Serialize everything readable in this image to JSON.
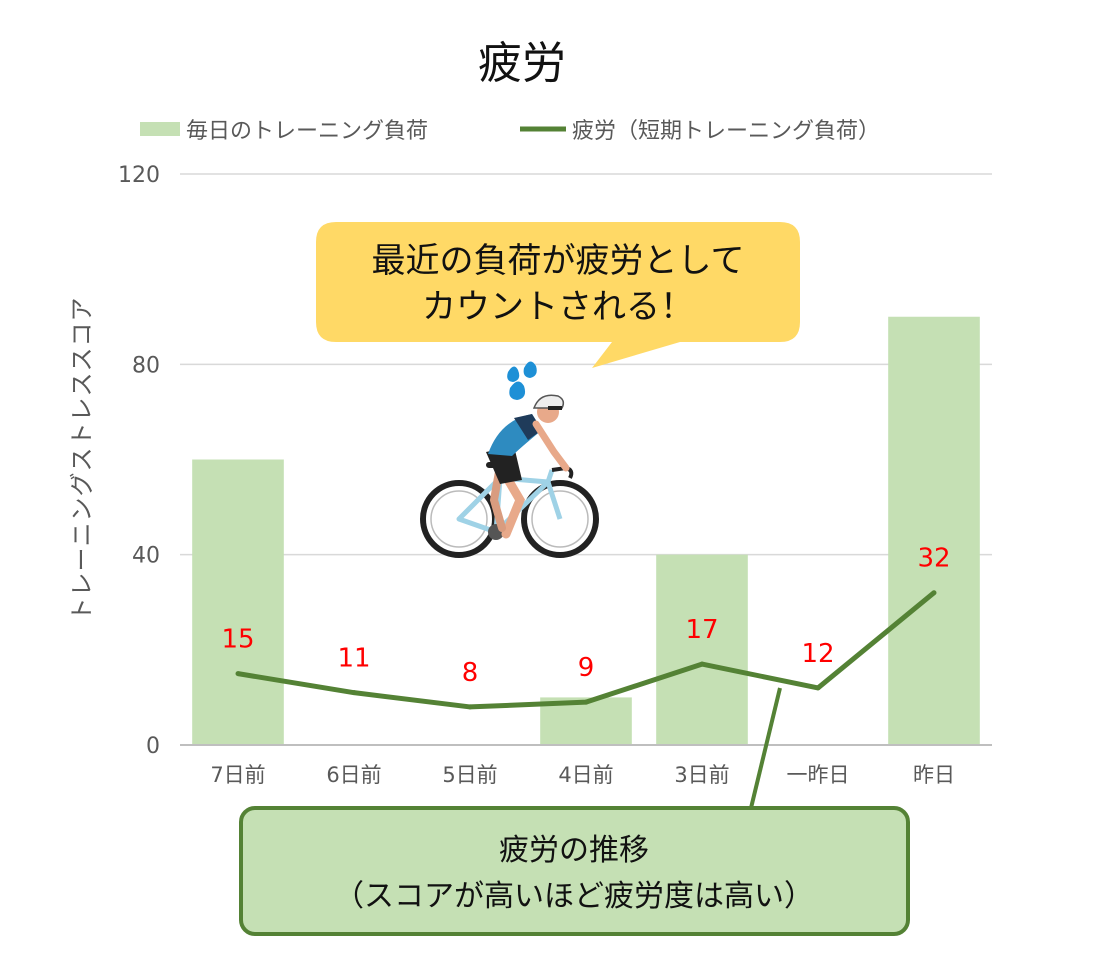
{
  "chart_data": {
    "type": "bar",
    "title": "疲労",
    "ylabel": "トレーニングストレススコア",
    "xlabel": "",
    "ylim": [
      0,
      120
    ],
    "yticks": [
      0,
      40,
      80,
      120
    ],
    "grid": true,
    "legend_position": "top",
    "categories": [
      "7日前",
      "6日前",
      "5日前",
      "4日前",
      "3日前",
      "一昨日",
      "昨日"
    ],
    "series": [
      {
        "name": "毎日のトレーニング負荷",
        "type": "bar",
        "color": "#c5e0b4",
        "values": [
          60,
          0,
          0,
          10,
          40,
          0,
          90
        ]
      },
      {
        "name": "疲労（短期トレーニング負荷）",
        "type": "line",
        "color": "#548235",
        "values": [
          15,
          11,
          8,
          9,
          17,
          12,
          32
        ]
      }
    ],
    "data_label_color": "#ff0000"
  },
  "callout": {
    "line1": "最近の負荷が疲労として",
    "line2": "カウントされる！",
    "fill": "#ffd966"
  },
  "note": {
    "line1": "疲労の推移",
    "line2": "（スコアが高いほど疲労度は高い）",
    "fill": "#c5e0b4",
    "border": "#548235"
  },
  "illustration": {
    "icon": "cyclist-icon",
    "jersey_color": "#2e8bc0",
    "frame_color": "#9fd2e6",
    "sweat_color": "#1e90d6"
  }
}
